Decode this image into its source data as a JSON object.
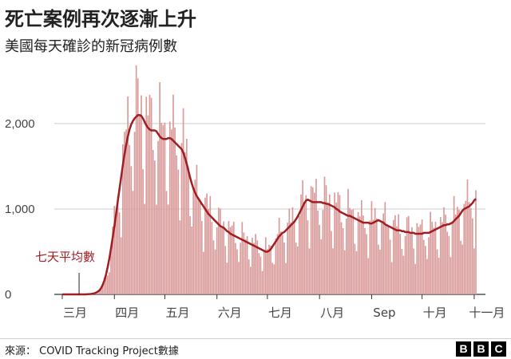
{
  "header": {
    "title": "死亡案例再次逐漸上升",
    "subtitle": "美國每天確診的新冠病例數"
  },
  "annotation": {
    "avg_label": "七天平均數"
  },
  "footer": {
    "source": "來源： COVID Tracking Project數據",
    "logo": [
      "B",
      "B",
      "C"
    ]
  },
  "colors": {
    "bar": "#d99a9a",
    "line": "#a11d21",
    "grid": "#cccccc",
    "label": "#a11d21"
  },
  "chart_data": {
    "type": "bar",
    "title": "死亡案例再次逐漸上升",
    "subtitle": "美國每天確診的新冠病例數",
    "x_start": "2020-03-01",
    "xlabel": "",
    "ylabel": "",
    "ylim": [
      0,
      2700
    ],
    "yticks": [
      0,
      1000,
      2000
    ],
    "ytick_labels": [
      "0",
      "1,000",
      "2,000"
    ],
    "grid": true,
    "xticks": [
      {
        "label": "三月",
        "date": "2020-03-01"
      },
      {
        "label": "四月",
        "date": "2020-04-01"
      },
      {
        "label": "五月",
        "date": "2020-05-01"
      },
      {
        "label": "六月",
        "date": "2020-06-01"
      },
      {
        "label": "七月",
        "date": "2020-07-01"
      },
      {
        "label": "八月",
        "date": "2020-08-01"
      },
      {
        "label": "Sep",
        "date": "2020-09-01"
      },
      {
        "label": "十月",
        "date": "2020-10-01"
      },
      {
        "label": "十一月",
        "date": "2020-11-01"
      }
    ],
    "series": [
      {
        "type": "line",
        "values": [
          0,
          0,
          0,
          0,
          0,
          0,
          0,
          0,
          0,
          0,
          0,
          0,
          0,
          0,
          0,
          2,
          3,
          5,
          8,
          12,
          20,
          30,
          45,
          70,
          110,
          160,
          230,
          320,
          420,
          540,
          670,
          800,
          940,
          1090,
          1230,
          1370,
          1510,
          1640,
          1750,
          1850,
          1930,
          1990,
          2030,
          2060,
          2080,
          2100,
          2100,
          2090,
          2060,
          2020,
          1980,
          1950,
          1930,
          1920,
          1920,
          1920,
          1910,
          1880,
          1850,
          1830,
          1820,
          1820,
          1820,
          1830,
          1830,
          1820,
          1800,
          1780,
          1760,
          1740,
          1720,
          1700,
          1660,
          1600,
          1530,
          1450,
          1370,
          1300,
          1240,
          1190,
          1150,
          1120,
          1090,
          1060,
          1030,
          1000,
          970,
          940,
          920,
          900,
          880,
          860,
          840,
          820,
          800,
          790,
          780,
          760,
          740,
          730,
          710,
          700,
          690,
          680,
          670,
          660,
          650,
          640,
          630,
          620,
          610,
          600,
          590,
          580,
          570,
          560,
          550,
          540,
          530,
          520,
          510,
          500,
          500,
          510,
          530,
          560,
          590,
          620,
          650,
          680,
          700,
          720,
          730,
          750,
          770,
          790,
          810,
          830,
          850,
          880,
          910,
          950,
          990,
          1030,
          1070,
          1100,
          1110,
          1100,
          1090,
          1080,
          1080,
          1080,
          1080,
          1080,
          1080,
          1070,
          1070,
          1060,
          1060,
          1050,
          1040,
          1030,
          1020,
          1000,
          990,
          970,
          960,
          950,
          940,
          930,
          920,
          920,
          910,
          900,
          890,
          880,
          870,
          860,
          850,
          840,
          840,
          840,
          840,
          830,
          830,
          840,
          850,
          860,
          870,
          860,
          850,
          840,
          820,
          810,
          800,
          790,
          780,
          770,
          760,
          750,
          750,
          750,
          740,
          740,
          730,
          730,
          730,
          720,
          720,
          720,
          710,
          710,
          710,
          710,
          710,
          720,
          720,
          720,
          720,
          730,
          740,
          750,
          760,
          770,
          780,
          790,
          800,
          810,
          810,
          820,
          820,
          830,
          840,
          860,
          880,
          900,
          920,
          950,
          980,
          1000,
          1010,
          1020,
          1030,
          1050,
          1070,
          1100,
          1120
        ],
        "x_offset_days": 0
      },
      {
        "type": "bar",
        "note": "daily counts",
        "values": [
          0,
          0,
          0,
          0,
          0,
          0,
          0,
          0,
          0,
          0,
          0,
          0,
          0,
          0,
          0,
          2,
          3,
          5,
          8,
          12,
          20,
          30,
          45,
          70,
          110,
          160,
          230,
          320,
          420,
          540,
          670,
          800,
          940,
          1090,
          1230,
          1370,
          1510,
          1640,
          1750,
          1850,
          1930,
          1990,
          2030,
          2060,
          2080,
          2100,
          2100,
          2090,
          2060,
          2020,
          1980,
          1950,
          1930,
          1920,
          1920,
          1920,
          1910,
          1880,
          1850,
          1830,
          1820,
          1820,
          1820,
          1830,
          1830,
          1820,
          1800,
          1780,
          1760,
          1740,
          1720,
          1700,
          1660,
          1600,
          1530,
          1450,
          1370,
          1300,
          1240,
          1190,
          1150,
          1120,
          1090,
          1060,
          1030,
          1000,
          970,
          940,
          920,
          900,
          880,
          860,
          840,
          820,
          800,
          790,
          780,
          760,
          740,
          730,
          710,
          700,
          690,
          680,
          670,
          660,
          650,
          640,
          630,
          620,
          610,
          600,
          590,
          580,
          570,
          560,
          550,
          540,
          530,
          520,
          510,
          500,
          500,
          510,
          530,
          560,
          590,
          620,
          650,
          680,
          700,
          720,
          730,
          750,
          770,
          790,
          810,
          830,
          850,
          880,
          910,
          950,
          990,
          1030,
          1070,
          1100,
          1110,
          1100,
          1090,
          1080,
          1080,
          1080,
          1080,
          1080,
          1080,
          1070,
          1070,
          1060,
          1060,
          1050,
          1040,
          1030,
          1020,
          1000,
          990,
          970,
          960,
          950,
          940,
          930,
          920,
          920,
          910,
          900,
          890,
          880,
          870,
          860,
          850,
          840,
          840,
          840,
          840,
          830,
          830,
          840,
          850,
          860,
          870,
          860,
          850,
          840,
          820,
          810,
          800,
          790,
          780,
          770,
          760,
          750,
          750,
          750,
          740,
          740,
          730,
          730,
          730,
          720,
          720,
          720,
          710,
          710,
          710,
          710,
          710,
          720,
          720,
          720,
          720,
          730,
          740,
          750,
          760,
          770,
          780,
          790,
          800,
          810,
          810,
          820,
          820,
          830,
          840,
          860,
          880,
          900,
          920,
          950,
          980,
          1000,
          1010,
          1020,
          1030,
          1050,
          1070,
          1100,
          1120
        ],
        "weekly_pattern": [
          0.55,
          1.05,
          1.2,
          1.18,
          1.12,
          1.0,
          0.75
        ]
      }
    ]
  }
}
